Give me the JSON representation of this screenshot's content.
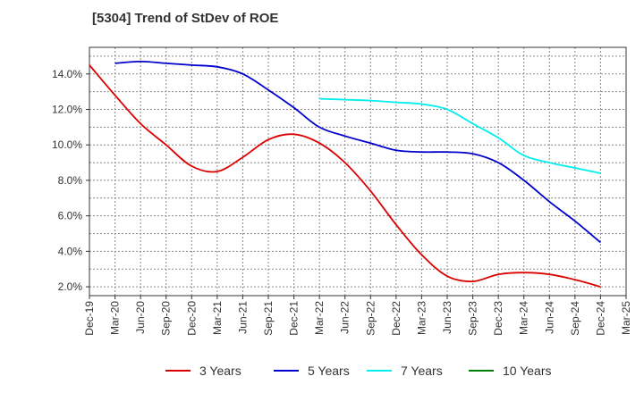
{
  "chart_data": {
    "type": "line",
    "title": "[5304]  Trend of StDev of ROE",
    "xlabel": "",
    "ylabel": "",
    "x": [
      "Dec-19",
      "Mar-20",
      "Jun-20",
      "Sep-20",
      "Dec-20",
      "Mar-21",
      "Jun-21",
      "Sep-21",
      "Dec-21",
      "Mar-22",
      "Jun-22",
      "Sep-22",
      "Dec-22",
      "Mar-23",
      "Jun-23",
      "Sep-23",
      "Dec-23",
      "Mar-24",
      "Jun-24",
      "Sep-24",
      "Dec-24",
      "Mar-25"
    ],
    "y_ticks": [
      "2.0%",
      "4.0%",
      "6.0%",
      "8.0%",
      "10.0%",
      "12.0%",
      "14.0%"
    ],
    "ylim": [
      1.5,
      15.5
    ],
    "grid": true,
    "legend_position": "bottom",
    "series": [
      {
        "name": "3 Years",
        "color": "#dd0000",
        "values": [
          14.5,
          12.8,
          11.2,
          10.0,
          8.8,
          8.5,
          9.3,
          10.3,
          10.6,
          10.1,
          9.0,
          7.4,
          5.5,
          3.8,
          2.6,
          2.3,
          2.7,
          2.8,
          2.7,
          2.4,
          2.0,
          null
        ]
      },
      {
        "name": "5 Years",
        "color": "#0000cc",
        "values": [
          null,
          14.6,
          14.7,
          14.6,
          14.5,
          14.4,
          14.0,
          13.1,
          12.1,
          11.0,
          10.5,
          10.1,
          9.7,
          9.6,
          9.6,
          9.5,
          9.0,
          8.0,
          6.8,
          5.7,
          4.5,
          null
        ]
      },
      {
        "name": "7 Years",
        "color": "#00eeee",
        "values": [
          null,
          null,
          null,
          null,
          null,
          null,
          null,
          null,
          null,
          12.6,
          12.55,
          12.5,
          12.4,
          12.3,
          12.0,
          11.2,
          10.4,
          9.4,
          9.0,
          8.7,
          8.4,
          null
        ]
      },
      {
        "name": "10 Years",
        "color": "#008000",
        "values": [
          null,
          null,
          null,
          null,
          null,
          null,
          null,
          null,
          null,
          null,
          null,
          null,
          null,
          null,
          null,
          null,
          null,
          null,
          null,
          null,
          null,
          null
        ]
      }
    ]
  }
}
